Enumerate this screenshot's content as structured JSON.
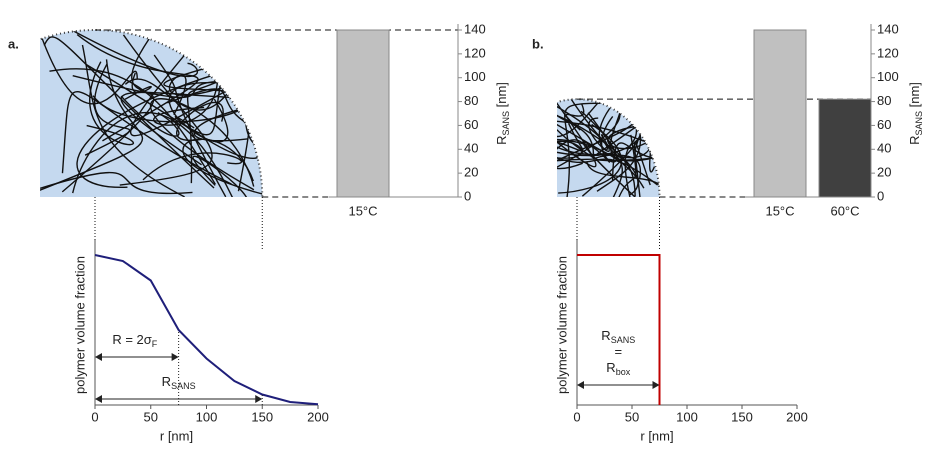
{
  "chart_data": [
    {
      "type": "bar",
      "panel_label": "a.",
      "categories": [
        "15°C"
      ],
      "values": [
        140
      ],
      "colors": [
        "#c0c0c0"
      ],
      "ylim": [
        0,
        140
      ],
      "yticks": [
        0,
        20,
        40,
        60,
        80,
        100,
        120,
        140
      ],
      "ylabel": {
        "text": "R",
        "subscript": "SANS",
        "suffix": " [nm]"
      }
    },
    {
      "type": "line",
      "x": [
        0,
        25,
        50,
        75,
        100,
        125,
        150,
        175,
        200
      ],
      "series": [
        {
          "color": "#1f1f7a",
          "values": [
            1,
            0.96,
            0.83,
            0.5,
            0.31,
            0.16,
            0.07,
            0.02,
            0.005
          ]
        }
      ],
      "xlim": [
        0,
        200
      ],
      "xticks": [
        0,
        50,
        100,
        150,
        200
      ],
      "ylim": [
        0,
        1.1
      ],
      "xlabel": "r [nm]",
      "ylabel": "polymer volume fraction",
      "annotations": [
        {
          "lines": [
            {
              "text": "R = 2σ",
              "subscript": "F"
            }
          ],
          "span": [
            0,
            75
          ]
        },
        {
          "lines": [
            {
              "text": "R",
              "subscript": "SANS"
            }
          ],
          "span": [
            0,
            150
          ]
        }
      ]
    },
    {
      "type": "bar",
      "panel_label": "b.",
      "categories": [
        "15°C",
        "60°C"
      ],
      "values": [
        140,
        82
      ],
      "colors": [
        "#c0c0c0",
        "#404040"
      ],
      "ylim": [
        0,
        140
      ],
      "yticks": [
        0,
        20,
        40,
        60,
        80,
        100,
        120,
        140
      ],
      "ylabel": {
        "text": "R",
        "subscript": "SANS",
        "suffix": " [nm]"
      }
    },
    {
      "type": "line",
      "x": [
        0,
        75,
        75
      ],
      "series": [
        {
          "color": "#c00000",
          "values": [
            1,
            1,
            0
          ]
        }
      ],
      "xlim": [
        0,
        200
      ],
      "xticks": [
        0,
        50,
        100,
        150,
        200
      ],
      "ylim": [
        0,
        1.1
      ],
      "xlabel": "r [nm]",
      "ylabel": "polymer volume fraction",
      "annotations": [
        {
          "lines": [
            {
              "text": "R",
              "subscript": "SANS"
            },
            {
              "text": "="
            },
            {
              "text": "R",
              "subscript": "box"
            }
          ],
          "span": [
            0,
            75
          ]
        }
      ]
    }
  ]
}
